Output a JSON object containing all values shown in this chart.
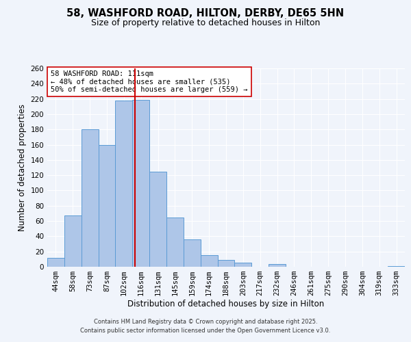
{
  "title": "58, WASHFORD ROAD, HILTON, DERBY, DE65 5HN",
  "subtitle": "Size of property relative to detached houses in Hilton",
  "xlabel": "Distribution of detached houses by size in Hilton",
  "ylabel": "Number of detached properties",
  "bar_labels": [
    "44sqm",
    "58sqm",
    "73sqm",
    "87sqm",
    "102sqm",
    "116sqm",
    "131sqm",
    "145sqm",
    "159sqm",
    "174sqm",
    "188sqm",
    "203sqm",
    "217sqm",
    "232sqm",
    "246sqm",
    "261sqm",
    "275sqm",
    "290sqm",
    "304sqm",
    "319sqm",
    "333sqm"
  ],
  "bar_heights": [
    12,
    67,
    180,
    160,
    218,
    219,
    125,
    65,
    36,
    15,
    9,
    5,
    0,
    4,
    0,
    0,
    0,
    0,
    0,
    0,
    1
  ],
  "bar_color": "#aec6e8",
  "bar_edge_color": "#5b9bd5",
  "ylim": [
    0,
    260
  ],
  "yticks": [
    0,
    20,
    40,
    60,
    80,
    100,
    120,
    140,
    160,
    180,
    200,
    220,
    240,
    260
  ],
  "vline_color": "#cc0000",
  "annotation_box_text": "58 WASHFORD ROAD: 111sqm\n← 48% of detached houses are smaller (535)\n50% of semi-detached houses are larger (559) →",
  "bg_color": "#f0f4fb",
  "plot_bg_color": "#f0f4fb",
  "footer_line1": "Contains HM Land Registry data © Crown copyright and database right 2025.",
  "footer_line2": "Contains public sector information licensed under the Open Government Licence v3.0.",
  "title_fontsize": 10.5,
  "subtitle_fontsize": 9,
  "axis_label_fontsize": 8.5,
  "tick_fontsize": 7.5,
  "annotation_fontsize": 7.5,
  "footer_fontsize": 6
}
